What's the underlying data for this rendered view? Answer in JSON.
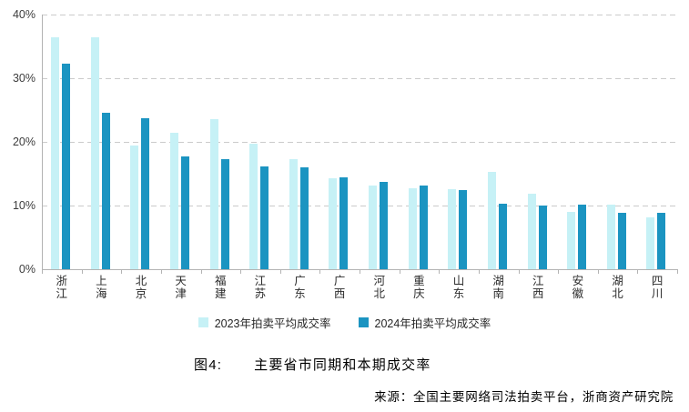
{
  "chart_data": {
    "type": "bar",
    "figure_label": "图4:",
    "title": "主要省市同期和本期成交率",
    "source": "来源：全国主要网络司法拍卖平台，浙商资产研究院",
    "categories": [
      "浙江",
      "上海",
      "北京",
      "天津",
      "福建",
      "江苏",
      "广东",
      "广西",
      "河北",
      "重庆",
      "山东",
      "湖南",
      "江西",
      "安徽",
      "湖北",
      "四川"
    ],
    "series": [
      {
        "name": "2023年拍卖平均成交率",
        "color": "#c6f1f6",
        "values": [
          36.4,
          36.4,
          19.5,
          21.5,
          23.6,
          19.7,
          17.3,
          14.3,
          13.1,
          12.7,
          12.6,
          15.3,
          11.9,
          9.0,
          10.2,
          8.1
        ]
      },
      {
        "name": "2024年拍卖平均成交率",
        "color": "#1b94c1",
        "values": [
          32.3,
          24.6,
          23.7,
          17.7,
          17.3,
          16.2,
          16.0,
          14.4,
          13.7,
          13.2,
          12.5,
          10.3,
          10.0,
          10.1,
          8.9,
          8.9
        ]
      }
    ],
    "ylim": [
      0,
      40
    ],
    "yticks": [
      {
        "label": "0%",
        "value": 0
      },
      {
        "label": "10%",
        "value": 10
      },
      {
        "label": "20%",
        "value": 20
      },
      {
        "label": "30%",
        "value": 30
      },
      {
        "label": "40%",
        "value": 40
      }
    ],
    "grid": "horizontal-dashed",
    "legend_position": "bottom-center"
  }
}
